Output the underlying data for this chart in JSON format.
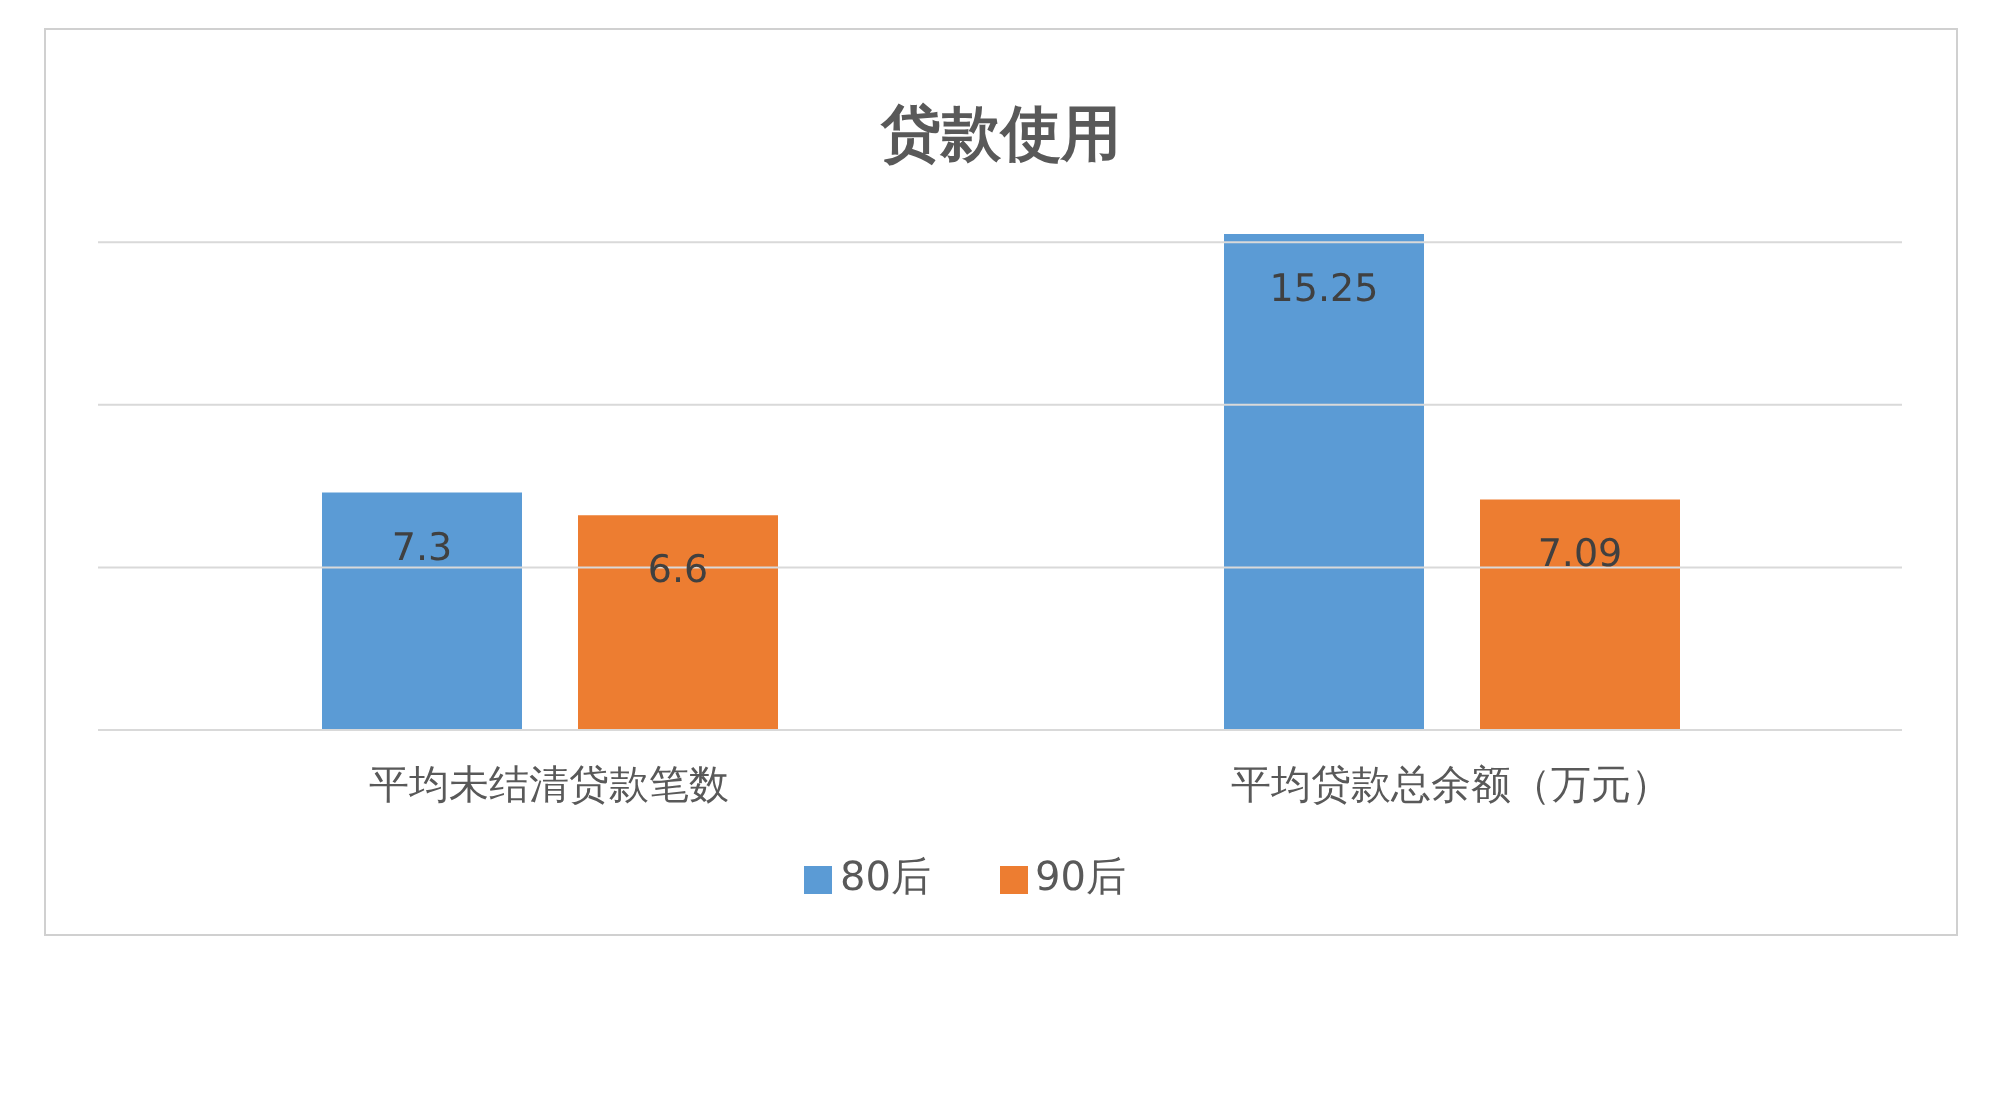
{
  "chart_data": {
    "type": "bar",
    "title": "贷款使用",
    "categories": [
      "平均未结清贷款笔数",
      "平均贷款总余额（万元）"
    ],
    "series": [
      {
        "name": "80后",
        "color": "#5b9bd5",
        "values": [
          7.3,
          15.25
        ]
      },
      {
        "name": "90后",
        "color": "#ed7d31",
        "values": [
          6.6,
          7.09
        ]
      }
    ],
    "yticks": [
      {
        "value": 0,
        "label": null
      },
      {
        "value": 5,
        "label": null
      },
      {
        "value": 10,
        "label": null
      },
      {
        "value": 15,
        "label": null
      }
    ],
    "tick_labels": "x",
    "grid": "y",
    "legend": "bottom",
    "data_labels": true
  }
}
